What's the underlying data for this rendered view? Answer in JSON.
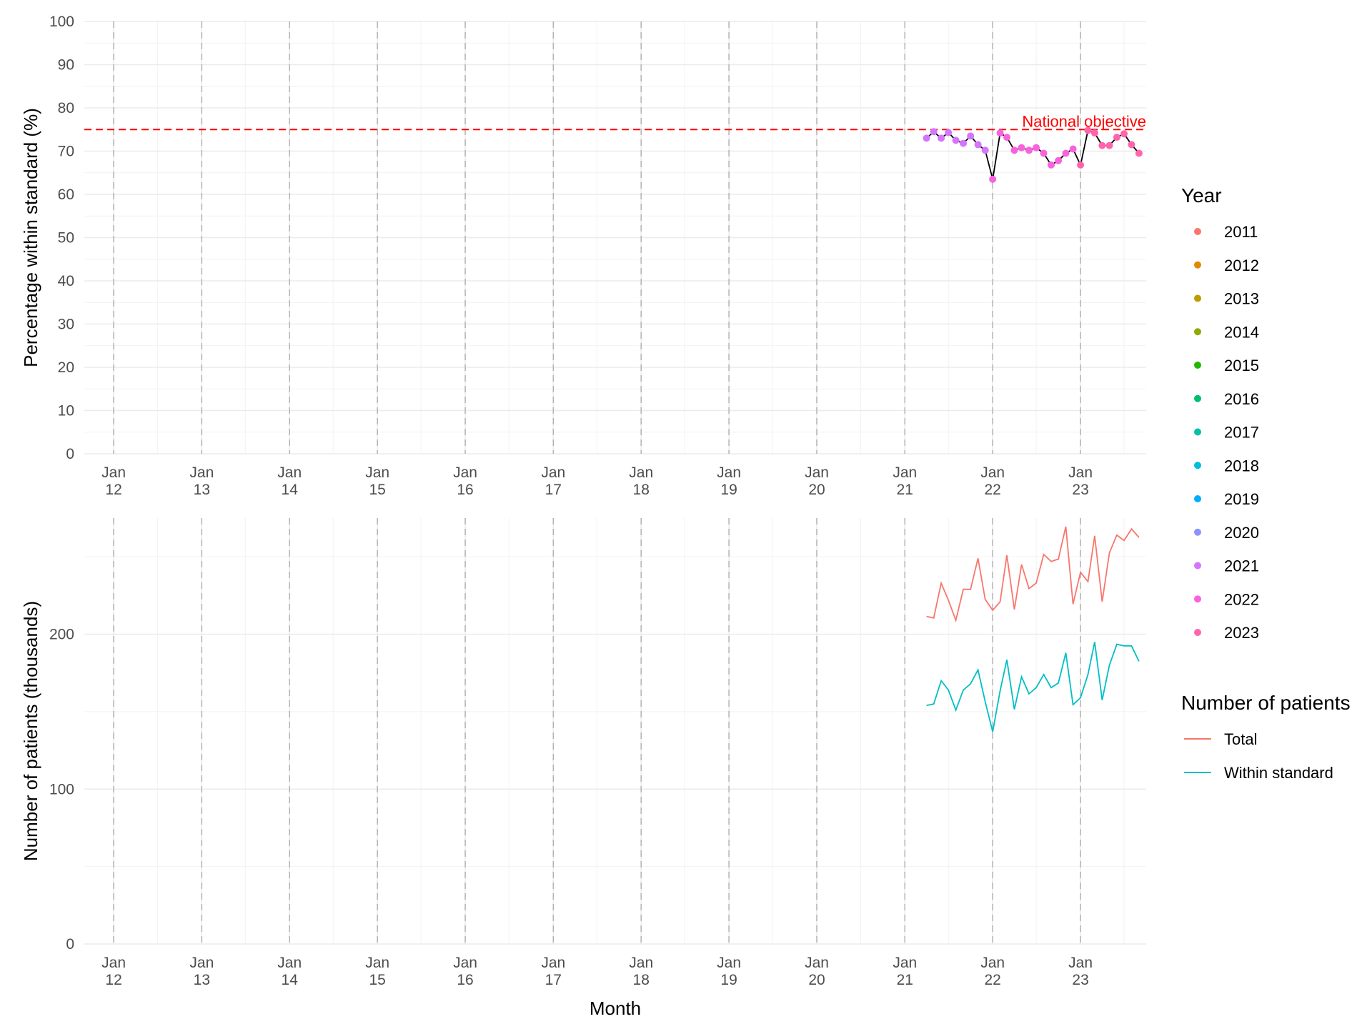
{
  "chart_data": [
    {
      "type": "scatter",
      "panel": "top",
      "ylabel": "Percentage within standard (%)",
      "xlabel": "",
      "ylim": [
        0,
        100
      ],
      "yticks": [
        0,
        10,
        20,
        30,
        40,
        50,
        60,
        70,
        80,
        90,
        100
      ],
      "xlim": [
        "2011-09-01",
        "2023-10-01"
      ],
      "xticks": [
        {
          "date": "2012-01-01",
          "label": [
            "Jan",
            "12"
          ]
        },
        {
          "date": "2013-01-01",
          "label": [
            "Jan",
            "13"
          ]
        },
        {
          "date": "2014-01-01",
          "label": [
            "Jan",
            "14"
          ]
        },
        {
          "date": "2015-01-01",
          "label": [
            "Jan",
            "15"
          ]
        },
        {
          "date": "2016-01-01",
          "label": [
            "Jan",
            "16"
          ]
        },
        {
          "date": "2017-01-01",
          "label": [
            "Jan",
            "17"
          ]
        },
        {
          "date": "2018-01-01",
          "label": [
            "Jan",
            "18"
          ]
        },
        {
          "date": "2019-01-01",
          "label": [
            "Jan",
            "19"
          ]
        },
        {
          "date": "2020-01-01",
          "label": [
            "Jan",
            "20"
          ]
        },
        {
          "date": "2021-01-01",
          "label": [
            "Jan",
            "21"
          ]
        },
        {
          "date": "2022-01-01",
          "label": [
            "Jan",
            "22"
          ]
        },
        {
          "date": "2023-01-01",
          "label": [
            "Jan",
            "23"
          ]
        }
      ],
      "reference_line": {
        "y": 75,
        "label": "National objective",
        "color": "#ff0000",
        "style": "dashed"
      },
      "vertical_lines": "dashed grey at each January",
      "grid": true,
      "line_color": "#000000",
      "points": [
        {
          "x": "2021-04-01",
          "y": 73.0,
          "year": "2021"
        },
        {
          "x": "2021-05-01",
          "y": 74.5,
          "year": "2021"
        },
        {
          "x": "2021-06-01",
          "y": 73.0,
          "year": "2021"
        },
        {
          "x": "2021-07-01",
          "y": 74.3,
          "year": "2021"
        },
        {
          "x": "2021-08-01",
          "y": 72.5,
          "year": "2021"
        },
        {
          "x": "2021-09-01",
          "y": 71.8,
          "year": "2021"
        },
        {
          "x": "2021-10-01",
          "y": 73.5,
          "year": "2021"
        },
        {
          "x": "2021-11-01",
          "y": 71.5,
          "year": "2021"
        },
        {
          "x": "2021-12-01",
          "y": 70.2,
          "year": "2021"
        },
        {
          "x": "2022-01-01",
          "y": 63.5,
          "year": "2022"
        },
        {
          "x": "2022-02-01",
          "y": 74.2,
          "year": "2022"
        },
        {
          "x": "2022-03-01",
          "y": 73.2,
          "year": "2022"
        },
        {
          "x": "2022-04-01",
          "y": 70.2,
          "year": "2022"
        },
        {
          "x": "2022-05-01",
          "y": 70.8,
          "year": "2022"
        },
        {
          "x": "2022-06-01",
          "y": 70.2,
          "year": "2022"
        },
        {
          "x": "2022-07-01",
          "y": 70.8,
          "year": "2022"
        },
        {
          "x": "2022-08-01",
          "y": 69.5,
          "year": "2022"
        },
        {
          "x": "2022-09-01",
          "y": 66.8,
          "year": "2022"
        },
        {
          "x": "2022-10-01",
          "y": 67.8,
          "year": "2022"
        },
        {
          "x": "2022-11-01",
          "y": 69.5,
          "year": "2022"
        },
        {
          "x": "2022-12-01",
          "y": 70.5,
          "year": "2022"
        },
        {
          "x": "2023-01-01",
          "y": 66.8,
          "year": "2023"
        },
        {
          "x": "2023-02-01",
          "y": 74.8,
          "year": "2023"
        },
        {
          "x": "2023-03-01",
          "y": 74.2,
          "year": "2023"
        },
        {
          "x": "2023-04-01",
          "y": 71.3,
          "year": "2023"
        },
        {
          "x": "2023-05-01",
          "y": 71.3,
          "year": "2023"
        },
        {
          "x": "2023-06-01",
          "y": 73.2,
          "year": "2023"
        },
        {
          "x": "2023-07-01",
          "y": 74.0,
          "year": "2023"
        },
        {
          "x": "2023-08-01",
          "y": 71.5,
          "year": "2023"
        },
        {
          "x": "2023-09-01",
          "y": 69.5,
          "year": "2023"
        }
      ],
      "legend": {
        "title": "Year",
        "placement": "right",
        "entries": [
          {
            "label": "2011",
            "color": "#F8766D"
          },
          {
            "label": "2012",
            "color": "#E18A00"
          },
          {
            "label": "2013",
            "color": "#BE9C00"
          },
          {
            "label": "2014",
            "color": "#8CAB00"
          },
          {
            "label": "2015",
            "color": "#24B700"
          },
          {
            "label": "2016",
            "color": "#00BE70"
          },
          {
            "label": "2017",
            "color": "#00C1AB"
          },
          {
            "label": "2018",
            "color": "#00BBDA"
          },
          {
            "label": "2019",
            "color": "#00ACFC"
          },
          {
            "label": "2020",
            "color": "#8B93FF"
          },
          {
            "label": "2021",
            "color": "#D575FE"
          },
          {
            "label": "2022",
            "color": "#F962DD"
          },
          {
            "label": "2023",
            "color": "#FF65AC"
          }
        ]
      }
    },
    {
      "type": "line",
      "panel": "bottom",
      "ylabel": "Number of patients (thousands)",
      "xlabel": "Month",
      "ylim": [
        0,
        275
      ],
      "yticks": [
        0,
        100,
        200
      ],
      "xlim": [
        "2011-09-01",
        "2023-10-01"
      ],
      "xticks": [
        {
          "date": "2012-01-01",
          "label": [
            "Jan",
            "12"
          ]
        },
        {
          "date": "2013-01-01",
          "label": [
            "Jan",
            "13"
          ]
        },
        {
          "date": "2014-01-01",
          "label": [
            "Jan",
            "14"
          ]
        },
        {
          "date": "2015-01-01",
          "label": [
            "Jan",
            "15"
          ]
        },
        {
          "date": "2016-01-01",
          "label": [
            "Jan",
            "16"
          ]
        },
        {
          "date": "2017-01-01",
          "label": [
            "Jan",
            "17"
          ]
        },
        {
          "date": "2018-01-01",
          "label": [
            "Jan",
            "18"
          ]
        },
        {
          "date": "2019-01-01",
          "label": [
            "Jan",
            "19"
          ]
        },
        {
          "date": "2020-01-01",
          "label": [
            "Jan",
            "20"
          ]
        },
        {
          "date": "2021-01-01",
          "label": [
            "Jan",
            "21"
          ]
        },
        {
          "date": "2022-01-01",
          "label": [
            "Jan",
            "22"
          ]
        },
        {
          "date": "2023-01-01",
          "label": [
            "Jan",
            "23"
          ]
        }
      ],
      "vertical_lines": "dashed grey at each January",
      "grid": true,
      "x": [
        "2021-04-01",
        "2021-05-01",
        "2021-06-01",
        "2021-07-01",
        "2021-08-01",
        "2021-09-01",
        "2021-10-01",
        "2021-11-01",
        "2021-12-01",
        "2022-01-01",
        "2022-02-01",
        "2022-03-01",
        "2022-04-01",
        "2022-05-01",
        "2022-06-01",
        "2022-07-01",
        "2022-08-01",
        "2022-09-01",
        "2022-10-01",
        "2022-11-01",
        "2022-12-01",
        "2023-01-01",
        "2023-02-01",
        "2023-03-01",
        "2023-04-01",
        "2023-05-01",
        "2023-06-01",
        "2023-07-01",
        "2023-08-01",
        "2023-09-01"
      ],
      "series": [
        {
          "name": "Total",
          "color": "#F8766D",
          "values": [
            211.5,
            210.5,
            233.0,
            222.0,
            209.0,
            229.0,
            229.0,
            249.0,
            222.5,
            215.5,
            221.0,
            251.0,
            216.0,
            245.0,
            229.5,
            233.0,
            251.5,
            247.0,
            248.5,
            269.5,
            219.5,
            240.0,
            234.0,
            263.5,
            221.0,
            252.5,
            264.0,
            260.5,
            268.0,
            262.5
          ]
        },
        {
          "name": "Within standard",
          "color": "#00BFC4",
          "values": [
            154.0,
            155.0,
            170.0,
            164.0,
            151.0,
            164.0,
            168.0,
            177.0,
            156.5,
            137.0,
            163.5,
            183.5,
            151.5,
            172.5,
            161.5,
            165.5,
            174.0,
            165.5,
            168.5,
            188.0,
            154.5,
            159.0,
            174.0,
            195.0,
            157.5,
            180.0,
            193.5,
            192.5,
            192.5,
            182.5
          ]
        }
      ],
      "legend": {
        "title": "Number of patients",
        "placement": "right",
        "entries": [
          {
            "label": "Total",
            "color": "#F8766D"
          },
          {
            "label": "Within standard",
            "color": "#00BFC4"
          }
        ]
      }
    }
  ]
}
